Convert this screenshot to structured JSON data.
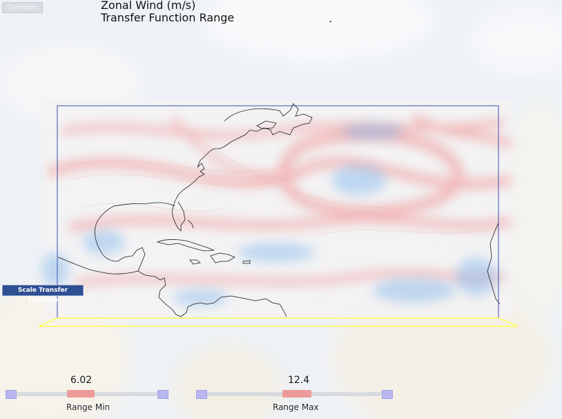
{
  "toolbar": {
    "configure_label": "Configure"
  },
  "overlay": {
    "title": "Zonal Wind (m/s)",
    "subtitle": "Transfer Function Range",
    "subtitle_dot": "."
  },
  "scale_button": {
    "label": "Scale Transfer Function"
  },
  "sliders": [
    {
      "value": "6.02",
      "label": "Range Min",
      "fraction": 0.4
    },
    {
      "value": "12.4",
      "label": "Range Max",
      "fraction": 0.5
    }
  ],
  "colors": {
    "bbox": "#3b4fb0",
    "base": "#ffff33",
    "coastline": "#1a1a1a",
    "warm": "#f08a8a",
    "cool": "#7fb5ec"
  }
}
